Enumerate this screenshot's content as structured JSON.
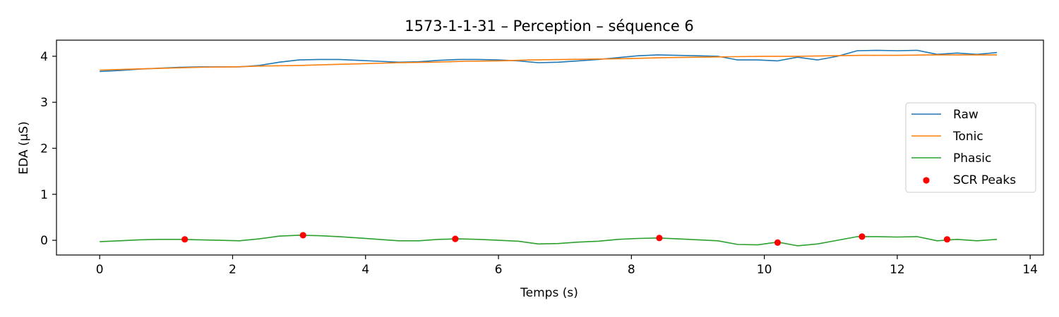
{
  "chart_data": {
    "type": "line",
    "title": "1573-1-1-31 – Perception – séquence 6",
    "xlabel": "Temps (s)",
    "ylabel": "EDA (µS)",
    "xlim": [
      -0.65,
      14.2
    ],
    "ylim": [
      -0.32,
      4.35
    ],
    "xticks": [
      0,
      2,
      4,
      6,
      8,
      10,
      12,
      14
    ],
    "yticks": [
      0,
      1,
      2,
      3,
      4
    ],
    "grid": false,
    "legend_position": "center-right",
    "series": [
      {
        "name": "Raw",
        "color": "#1f77b4",
        "x": [
          0.0,
          0.3,
          0.6,
          0.9,
          1.2,
          1.5,
          1.8,
          2.1,
          2.4,
          2.7,
          3.0,
          3.3,
          3.6,
          3.9,
          4.2,
          4.5,
          4.8,
          5.1,
          5.4,
          5.7,
          6.0,
          6.3,
          6.6,
          6.9,
          7.2,
          7.5,
          7.8,
          8.1,
          8.4,
          8.7,
          9.0,
          9.3,
          9.6,
          9.9,
          10.2,
          10.5,
          10.8,
          11.1,
          11.4,
          11.7,
          12.0,
          12.3,
          12.6,
          12.9,
          13.2,
          13.5
        ],
        "values": [
          3.67,
          3.69,
          3.72,
          3.74,
          3.76,
          3.77,
          3.77,
          3.77,
          3.8,
          3.87,
          3.92,
          3.93,
          3.93,
          3.91,
          3.89,
          3.87,
          3.88,
          3.91,
          3.93,
          3.93,
          3.92,
          3.9,
          3.86,
          3.87,
          3.9,
          3.93,
          3.97,
          4.01,
          4.03,
          4.02,
          4.01,
          4.0,
          3.92,
          3.92,
          3.9,
          3.98,
          3.92,
          4.0,
          4.12,
          4.13,
          4.12,
          4.13,
          4.04,
          4.07,
          4.04,
          4.08
        ]
      },
      {
        "name": "Tonic",
        "color": "#ff7f0e",
        "x": [
          0.0,
          0.5,
          1.0,
          1.5,
          2.0,
          2.5,
          3.0,
          3.5,
          4.0,
          4.5,
          5.0,
          5.5,
          6.0,
          6.5,
          7.0,
          7.5,
          8.0,
          8.5,
          9.0,
          9.5,
          10.0,
          10.5,
          11.0,
          11.5,
          12.0,
          12.5,
          13.0,
          13.5
        ],
        "values": [
          3.7,
          3.72,
          3.74,
          3.76,
          3.77,
          3.79,
          3.8,
          3.82,
          3.84,
          3.86,
          3.87,
          3.89,
          3.9,
          3.92,
          3.93,
          3.94,
          3.95,
          3.97,
          3.98,
          3.99,
          4.0,
          4.0,
          4.01,
          4.02,
          4.02,
          4.03,
          4.03,
          4.03
        ]
      },
      {
        "name": "Phasic",
        "color": "#2ca02c",
        "x": [
          0.0,
          0.3,
          0.6,
          0.9,
          1.2,
          1.5,
          1.8,
          2.1,
          2.4,
          2.7,
          3.0,
          3.3,
          3.6,
          3.9,
          4.2,
          4.5,
          4.8,
          5.1,
          5.4,
          5.7,
          6.0,
          6.3,
          6.6,
          6.9,
          7.2,
          7.5,
          7.8,
          8.1,
          8.4,
          8.7,
          9.0,
          9.3,
          9.6,
          9.9,
          10.2,
          10.5,
          10.8,
          11.1,
          11.4,
          11.7,
          12.0,
          12.3,
          12.6,
          12.9,
          13.2,
          13.5
        ],
        "values": [
          -0.03,
          -0.01,
          0.01,
          0.02,
          0.02,
          0.01,
          0.0,
          -0.01,
          0.03,
          0.09,
          0.11,
          0.1,
          0.08,
          0.05,
          0.02,
          -0.01,
          -0.01,
          0.02,
          0.03,
          0.02,
          0.0,
          -0.02,
          -0.08,
          -0.07,
          -0.04,
          -0.02,
          0.02,
          0.04,
          0.05,
          0.03,
          0.01,
          -0.01,
          -0.09,
          -0.1,
          -0.04,
          -0.12,
          -0.08,
          0.0,
          0.08,
          0.08,
          0.07,
          0.08,
          -0.01,
          0.02,
          -0.01,
          0.02
        ]
      }
    ],
    "scatter": {
      "name": "SCR Peaks",
      "color": "#ff0000",
      "x": [
        1.28,
        3.06,
        5.35,
        8.42,
        10.2,
        11.47,
        12.75
      ],
      "values": [
        0.02,
        0.11,
        0.03,
        0.05,
        -0.05,
        0.08,
        0.02
      ]
    }
  }
}
